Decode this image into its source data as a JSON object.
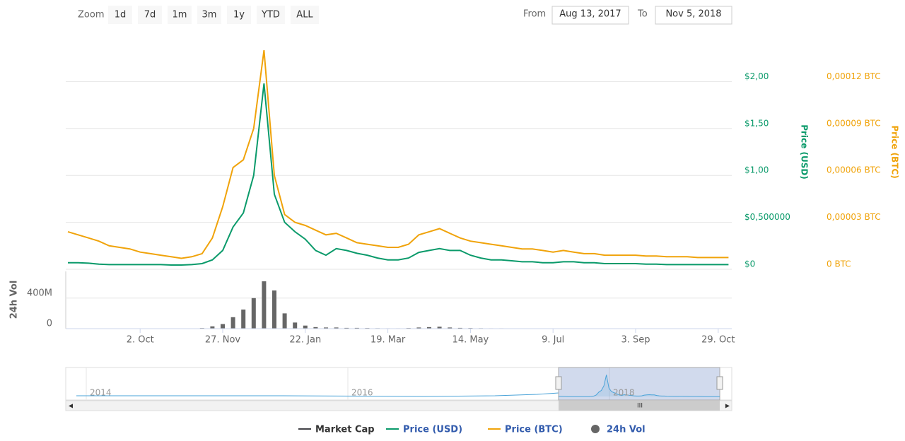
{
  "toolbar": {
    "zoom_label": "Zoom",
    "zoom_buttons": [
      "1d",
      "7d",
      "1m",
      "3m",
      "1y",
      "YTD",
      "ALL"
    ],
    "from_label": "From",
    "from_value": "Aug 13, 2017",
    "to_label": "To",
    "to_value": "Nov 5, 2018"
  },
  "chart_data": {
    "type": "line",
    "categories": [
      null,
      null,
      null,
      null,
      null,
      null,
      null,
      "2. Oct",
      null,
      null,
      null,
      null,
      null,
      null,
      null,
      "27. Nov",
      null,
      null,
      null,
      null,
      null,
      null,
      null,
      "22. Jan",
      null,
      null,
      null,
      null,
      null,
      null,
      null,
      "19. Mar",
      null,
      null,
      null,
      null,
      null,
      null,
      null,
      "14. May",
      null,
      null,
      null,
      null,
      null,
      null,
      null,
      "9. Jul",
      null,
      null,
      null,
      null,
      null,
      null,
      null,
      "3. Sep",
      null,
      null,
      null,
      null,
      null,
      null,
      null,
      "29. Oct",
      null
    ],
    "ylim": [
      0,
      2.5
    ],
    "yticks": [
      {
        "value": 0,
        "label": "$0"
      },
      {
        "value": 0.5,
        "label": "$0,500000"
      },
      {
        "value": 1,
        "label": "$1,00"
      },
      {
        "value": 1.5,
        "label": "$1,50"
      },
      {
        "value": 2,
        "label": "$2,00"
      }
    ],
    "y_label": "Price (USD)",
    "y2lim": [
      0,
      0.00015
    ],
    "y2ticks": [
      {
        "value": 0,
        "label": "0 BTC"
      },
      {
        "value": 3e-05,
        "label": "0,00003 BTC"
      },
      {
        "value": 6e-05,
        "label": "0,00006 BTC"
      },
      {
        "value": 9e-05,
        "label": "0,00009 BTC"
      },
      {
        "value": 0.00012,
        "label": "0,00012 BTC"
      }
    ],
    "y2_label": "Price (BTC)",
    "grid": true,
    "series": [
      {
        "name": "Price (USD)",
        "color": "#0a9a6a",
        "values": [
          0.07,
          0.07,
          0.065,
          0.055,
          0.05,
          0.05,
          0.05,
          0.05,
          0.05,
          0.05,
          0.045,
          0.045,
          0.05,
          0.06,
          0.1,
          0.2,
          0.45,
          0.6,
          1.0,
          1.98,
          0.8,
          0.5,
          0.4,
          0.32,
          0.2,
          0.15,
          0.22,
          0.2,
          0.17,
          0.15,
          0.12,
          0.1,
          0.1,
          0.12,
          0.18,
          0.2,
          0.22,
          0.2,
          0.2,
          0.15,
          0.12,
          0.1,
          0.1,
          0.09,
          0.08,
          0.08,
          0.07,
          0.07,
          0.08,
          0.08,
          0.07,
          0.07,
          0.06,
          0.06,
          0.06,
          0.06,
          0.055,
          0.055,
          0.05,
          0.05,
          0.05,
          0.05,
          0.05,
          0.05,
          0.05
        ]
      },
      {
        "name": "Price (BTC)",
        "color": "#f0a30a",
        "axis": "y2",
        "values": [
          2.4e-05,
          2.2e-05,
          2e-05,
          1.8e-05,
          1.5e-05,
          1.4e-05,
          1.3e-05,
          1.1e-05,
          1e-05,
          9e-06,
          8e-06,
          7e-06,
          8e-06,
          1e-05,
          2e-05,
          4e-05,
          6.5e-05,
          7e-05,
          9e-05,
          0.00014,
          6e-05,
          3.5e-05,
          3e-05,
          2.8e-05,
          2.5e-05,
          2.2e-05,
          2.3e-05,
          2e-05,
          1.7e-05,
          1.6e-05,
          1.5e-05,
          1.4e-05,
          1.4e-05,
          1.6e-05,
          2.2e-05,
          2.4e-05,
          2.6e-05,
          2.3e-05,
          2e-05,
          1.8e-05,
          1.7e-05,
          1.6e-05,
          1.5e-05,
          1.4e-05,
          1.3e-05,
          1.3e-05,
          1.2e-05,
          1.1e-05,
          1.2e-05,
          1.1e-05,
          1e-05,
          1e-05,
          9e-06,
          9e-06,
          9e-06,
          9e-06,
          8.5e-06,
          8.5e-06,
          8e-06,
          8e-06,
          8e-06,
          7.5e-06,
          7.5e-06,
          7.5e-06,
          7.5e-06
        ]
      }
    ],
    "volume": {
      "name": "24h Vol",
      "color": "#666666",
      "y_label": "24h Vol",
      "ylim": [
        0,
        750000000
      ],
      "yticks": [
        0,
        {
          "value": 400000000,
          "label": "400M"
        }
      ],
      "values": [
        2000000,
        2000000,
        2000000,
        2000000,
        2000000,
        3000000,
        2000000,
        2000000,
        2000000,
        2000000,
        2000000,
        3000000,
        4000000,
        8000000,
        30000000,
        60000000,
        150000000,
        250000000,
        400000000,
        620000000,
        500000000,
        200000000,
        80000000,
        40000000,
        20000000,
        15000000,
        15000000,
        10000000,
        10000000,
        8000000,
        6000000,
        5000000,
        5000000,
        8000000,
        15000000,
        20000000,
        25000000,
        15000000,
        10000000,
        8000000,
        6000000,
        5000000,
        5000000,
        4000000,
        4000000,
        4000000,
        3000000,
        3000000,
        3000000,
        3000000,
        3000000,
        3000000,
        2000000,
        2000000,
        2000000,
        2000000,
        2000000,
        2000000,
        2000000,
        2000000,
        2000000,
        2000000,
        2000000,
        2000000,
        2000000
      ]
    },
    "legend_extra": [
      {
        "name": "Market Cap",
        "color": "#434348"
      }
    ],
    "navigator_labels": [
      "2014",
      "2016",
      "2018"
    ]
  }
}
